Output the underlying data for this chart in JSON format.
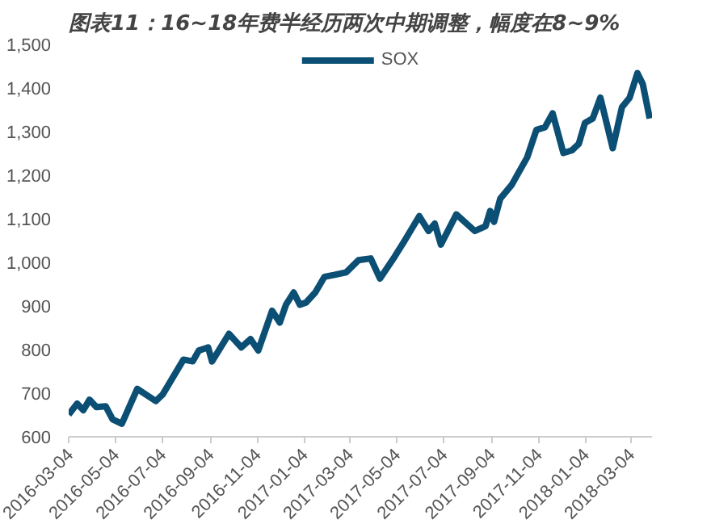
{
  "chart_data": {
    "type": "line",
    "title": "图表11：16~18年费半经历两次中期调整，幅度在8~9%",
    "x": [
      "2016-03-04",
      "2016-03-15",
      "2016-03-23",
      "2016-03-31",
      "2016-04-09",
      "2016-04-21",
      "2016-04-30",
      "2016-05-12",
      "2016-06-01",
      "2016-06-25",
      "2016-07-04",
      "2016-07-31",
      "2016-08-12",
      "2016-08-20",
      "2016-09-01",
      "2016-09-06",
      "2016-09-28",
      "2016-10-14",
      "2016-10-26",
      "2016-11-05",
      "2016-11-23",
      "2016-12-03",
      "2016-12-11",
      "2016-12-21",
      "2016-12-29",
      "2017-01-06",
      "2017-01-18",
      "2017-01-30",
      "2017-02-11",
      "2017-02-27",
      "2017-03-15",
      "2017-03-31",
      "2017-04-12",
      "2017-05-01",
      "2017-05-13",
      "2017-06-02",
      "2017-06-14",
      "2017-06-22",
      "2017-06-30",
      "2017-07-20",
      "2017-08-13",
      "2017-08-27",
      "2017-09-02",
      "2017-09-07",
      "2017-09-15",
      "2017-09-30",
      "2017-10-20",
      "2017-11-01",
      "2017-11-12",
      "2017-11-22",
      "2017-12-06",
      "2017-12-17",
      "2017-12-26",
      "2018-01-03",
      "2018-01-13",
      "2018-01-23",
      "2018-02-08",
      "2018-02-20",
      "2018-03-02",
      "2018-03-12",
      "2018-03-19",
      "2018-03-28"
    ],
    "series": [
      {
        "name": "SOX",
        "color": "#0b4f74",
        "values": [
          651,
          676,
          661,
          685,
          668,
          670,
          640,
          630,
          710,
          682,
          697,
          777,
          773,
          798,
          805,
          773,
          836,
          805,
          824,
          798,
          889,
          862,
          903,
          931,
          903,
          908,
          931,
          967,
          971,
          977,
          1005,
          1009,
          963,
          1013,
          1047,
          1106,
          1072,
          1089,
          1041,
          1110,
          1072,
          1083,
          1118,
          1093,
          1146,
          1178,
          1241,
          1304,
          1310,
          1342,
          1251,
          1257,
          1272,
          1320,
          1330,
          1378,
          1262,
          1356,
          1378,
          1434,
          1409,
          1330
        ]
      }
    ],
    "xlim": [
      "2016-03-04",
      "2018-03-31"
    ],
    "xticks": [
      "2016-03-04",
      "2016-05-04",
      "2016-07-04",
      "2016-09-04",
      "2016-11-04",
      "2017-01-04",
      "2017-03-04",
      "2017-05-04",
      "2017-07-04",
      "2017-09-04",
      "2017-11-04",
      "2018-01-04",
      "2018-03-04"
    ],
    "ylim": [
      600,
      1500
    ],
    "yticks": [
      600,
      700,
      800,
      900,
      {
        "value": 1000,
        "label": "1,000"
      },
      {
        "value": 1100,
        "label": "1,100"
      },
      {
        "value": 1200,
        "label": "1,200"
      },
      {
        "value": 1300,
        "label": "1,300"
      },
      {
        "value": 1400,
        "label": "1,400"
      },
      {
        "value": 1500,
        "label": "1,500"
      }
    ],
    "grid": false,
    "legend": "top",
    "line_style": "solid"
  }
}
